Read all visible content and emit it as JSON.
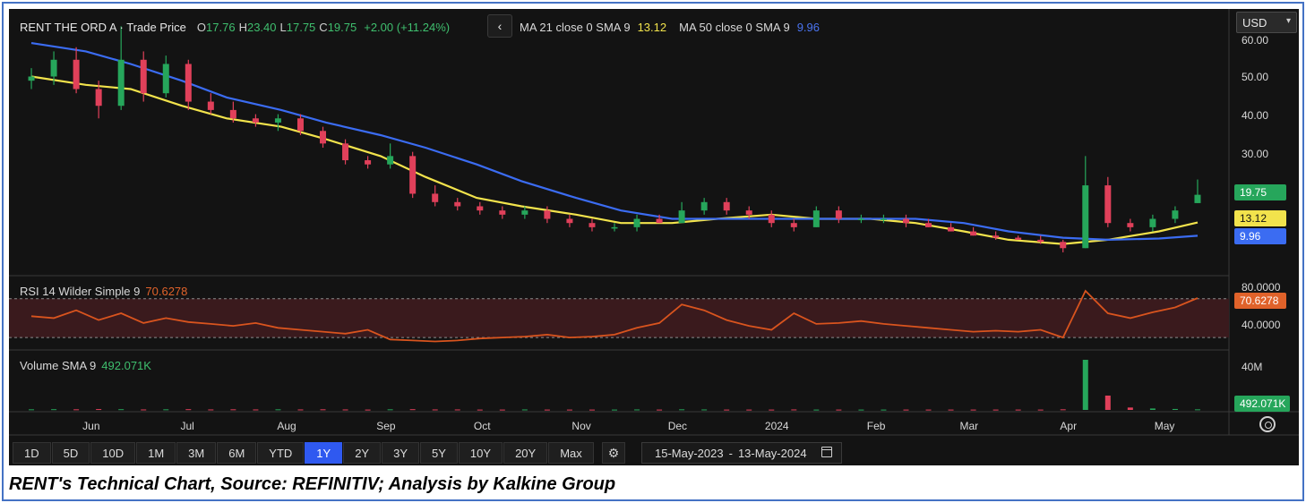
{
  "header": {
    "symbol": "RENT THE ORD A · Trade Price",
    "open_key": "O",
    "open": "17.76",
    "high_key": "H",
    "high": "23.40",
    "low_key": "L",
    "low": "17.75",
    "close_key": "C",
    "close": "19.75",
    "change": "+2.00 (+11.24%)",
    "collapse_glyph": "‹"
  },
  "ma_legend": {
    "ma21_label": "MA 21 close 0 SMA 9",
    "ma21_value": "13.12",
    "ma50_label": "MA 50 close 0 SMA 9",
    "ma50_value": "9.96"
  },
  "currency": {
    "selected": "USD",
    "caret": "▾"
  },
  "price_tags": {
    "close": "19.75",
    "ma21": "13.12",
    "ma50": "9.96"
  },
  "rsi": {
    "label": "RSI 14 Wilder Simple 9",
    "value": "70.6278",
    "tag": "70.6278"
  },
  "volume": {
    "label": "Volume SMA 9",
    "value": "492.071K",
    "tag": "492.071K"
  },
  "timeframes": [
    "1D",
    "5D",
    "10D",
    "1M",
    "3M",
    "6M",
    "YTD",
    "1Y",
    "2Y",
    "3Y",
    "5Y",
    "10Y",
    "20Y",
    "Max"
  ],
  "active_timeframe": "1Y",
  "date_range": {
    "from": "15-May-2023",
    "sep": "-",
    "to": "13-May-2024"
  },
  "caption": "RENT's Technical Chart, Source: REFINITIV; Analysis by Kalkine Group",
  "colors": {
    "up": "#26a65b",
    "down": "#e0405a",
    "ma21": "#f2e34c",
    "ma50": "#3b6cf2",
    "rsi": "#d9541e",
    "background": "#131313",
    "active": "#2f59f0",
    "frame": "#4472c4"
  },
  "chart_data": {
    "type": "candlestick",
    "title": "",
    "price_axis": {
      "ticks": [
        60.0,
        50.0,
        40.0,
        30.0
      ],
      "tick_labels": [
        "60.00",
        "50.00",
        "40.00",
        "30.00"
      ]
    },
    "rsi_axis": {
      "ticks": [
        80,
        40
      ],
      "tick_labels": [
        "80.0000",
        "40.0000"
      ],
      "overbought": 70,
      "oversold": 30
    },
    "volume_axis": {
      "tick_labels": [
        "40M"
      ]
    },
    "x_tick_labels": [
      "Jun",
      "Jul",
      "Aug",
      "Sep",
      "Oct",
      "Nov",
      "Dec",
      "2024",
      "Feb",
      "Mar",
      "Apr",
      "May"
    ],
    "series": [
      {
        "name": "MA 21 close 0 SMA 9",
        "color": "#f2e34c",
        "points": [
          [
            "2023-05-15",
            48
          ],
          [
            "2023-06-01",
            46
          ],
          [
            "2023-06-15",
            45
          ],
          [
            "2023-07-01",
            41
          ],
          [
            "2023-07-15",
            38
          ],
          [
            "2023-08-01",
            36
          ],
          [
            "2023-08-15",
            33
          ],
          [
            "2023-09-01",
            29
          ],
          [
            "2023-09-15",
            24
          ],
          [
            "2023-10-01",
            19
          ],
          [
            "2023-10-15",
            17
          ],
          [
            "2023-11-01",
            15
          ],
          [
            "2023-11-15",
            13
          ],
          [
            "2023-12-01",
            13
          ],
          [
            "2023-12-15",
            14
          ],
          [
            "2024-01-01",
            15
          ],
          [
            "2024-01-15",
            14
          ],
          [
            "2024-02-01",
            14
          ],
          [
            "2024-02-15",
            13
          ],
          [
            "2024-03-01",
            11
          ],
          [
            "2024-03-15",
            9
          ],
          [
            "2024-04-01",
            8
          ],
          [
            "2024-04-15",
            9
          ],
          [
            "2024-05-01",
            11
          ],
          [
            "2024-05-13",
            13.12
          ]
        ]
      },
      {
        "name": "MA 50 close 0 SMA 9",
        "color": "#3b6cf2",
        "points": [
          [
            "2023-05-15",
            56
          ],
          [
            "2023-06-01",
            54
          ],
          [
            "2023-06-15",
            51
          ],
          [
            "2023-07-01",
            47
          ],
          [
            "2023-07-15",
            43
          ],
          [
            "2023-08-01",
            40
          ],
          [
            "2023-08-15",
            37
          ],
          [
            "2023-09-01",
            34
          ],
          [
            "2023-09-15",
            31
          ],
          [
            "2023-10-01",
            27
          ],
          [
            "2023-10-15",
            23
          ],
          [
            "2023-11-01",
            19
          ],
          [
            "2023-11-15",
            16
          ],
          [
            "2023-12-01",
            14
          ],
          [
            "2023-12-15",
            14
          ],
          [
            "2024-01-01",
            14
          ],
          [
            "2024-01-15",
            14
          ],
          [
            "2024-02-01",
            14
          ],
          [
            "2024-02-15",
            14
          ],
          [
            "2024-03-01",
            13
          ],
          [
            "2024-03-15",
            11
          ],
          [
            "2024-04-01",
            9.5
          ],
          [
            "2024-04-15",
            9
          ],
          [
            "2024-05-01",
            9.3
          ],
          [
            "2024-05-13",
            9.96
          ]
        ]
      }
    ],
    "candles": [
      {
        "d": "2023-05-15",
        "o": 47,
        "h": 50,
        "l": 45,
        "c": 48
      },
      {
        "d": "2023-05-22",
        "o": 48,
        "h": 54,
        "l": 46,
        "c": 52
      },
      {
        "d": "2023-05-29",
        "o": 52,
        "h": 55,
        "l": 44,
        "c": 45
      },
      {
        "d": "2023-06-05",
        "o": 45,
        "h": 47,
        "l": 38,
        "c": 41
      },
      {
        "d": "2023-06-12",
        "o": 41,
        "h": 60,
        "l": 40,
        "c": 52
      },
      {
        "d": "2023-06-19",
        "o": 52,
        "h": 54,
        "l": 42,
        "c": 44
      },
      {
        "d": "2023-06-26",
        "o": 44,
        "h": 53,
        "l": 43,
        "c": 51
      },
      {
        "d": "2023-07-03",
        "o": 51,
        "h": 52,
        "l": 40,
        "c": 42
      },
      {
        "d": "2023-07-10",
        "o": 42,
        "h": 44,
        "l": 39,
        "c": 40
      },
      {
        "d": "2023-07-17",
        "o": 40,
        "h": 42,
        "l": 37,
        "c": 38
      },
      {
        "d": "2023-07-24",
        "o": 38,
        "h": 39,
        "l": 36,
        "c": 37
      },
      {
        "d": "2023-07-31",
        "o": 37,
        "h": 39,
        "l": 35,
        "c": 38
      },
      {
        "d": "2023-08-07",
        "o": 38,
        "h": 39,
        "l": 34,
        "c": 35
      },
      {
        "d": "2023-08-14",
        "o": 35,
        "h": 36,
        "l": 31,
        "c": 32
      },
      {
        "d": "2023-08-21",
        "o": 32,
        "h": 33,
        "l": 27,
        "c": 28
      },
      {
        "d": "2023-08-28",
        "o": 28,
        "h": 29,
        "l": 26,
        "c": 27
      },
      {
        "d": "2023-09-04",
        "o": 27,
        "h": 32,
        "l": 26,
        "c": 29
      },
      {
        "d": "2023-09-11",
        "o": 29,
        "h": 30,
        "l": 19,
        "c": 20
      },
      {
        "d": "2023-09-18",
        "o": 20,
        "h": 22,
        "l": 17,
        "c": 18
      },
      {
        "d": "2023-09-25",
        "o": 18,
        "h": 19,
        "l": 16,
        "c": 17
      },
      {
        "d": "2023-10-02",
        "o": 17,
        "h": 18,
        "l": 15,
        "c": 16
      },
      {
        "d": "2023-10-09",
        "o": 16,
        "h": 17,
        "l": 14,
        "c": 15
      },
      {
        "d": "2023-10-16",
        "o": 15,
        "h": 17,
        "l": 14,
        "c": 16
      },
      {
        "d": "2023-10-23",
        "o": 16,
        "h": 17,
        "l": 13,
        "c": 14
      },
      {
        "d": "2023-10-30",
        "o": 14,
        "h": 15,
        "l": 12,
        "c": 13
      },
      {
        "d": "2023-11-06",
        "o": 13,
        "h": 14,
        "l": 11,
        "c": 12
      },
      {
        "d": "2023-11-13",
        "o": 12,
        "h": 13,
        "l": 11,
        "c": 12
      },
      {
        "d": "2023-11-20",
        "o": 12,
        "h": 15,
        "l": 11,
        "c": 14
      },
      {
        "d": "2023-11-27",
        "o": 14,
        "h": 15,
        "l": 13,
        "c": 13
      },
      {
        "d": "2023-12-04",
        "o": 13,
        "h": 18,
        "l": 13,
        "c": 16
      },
      {
        "d": "2023-12-11",
        "o": 16,
        "h": 19,
        "l": 15,
        "c": 18
      },
      {
        "d": "2023-12-18",
        "o": 18,
        "h": 19,
        "l": 15,
        "c": 16
      },
      {
        "d": "2023-12-25",
        "o": 16,
        "h": 17,
        "l": 14,
        "c": 15
      },
      {
        "d": "2024-01-01",
        "o": 15,
        "h": 16,
        "l": 12,
        "c": 13
      },
      {
        "d": "2024-01-08",
        "o": 13,
        "h": 14,
        "l": 11,
        "c": 12
      },
      {
        "d": "2024-01-15",
        "o": 12,
        "h": 17,
        "l": 12,
        "c": 16
      },
      {
        "d": "2024-01-22",
        "o": 16,
        "h": 17,
        "l": 13,
        "c": 14
      },
      {
        "d": "2024-01-29",
        "o": 14,
        "h": 15,
        "l": 13,
        "c": 14
      },
      {
        "d": "2024-02-05",
        "o": 14,
        "h": 15,
        "l": 13,
        "c": 14
      },
      {
        "d": "2024-02-12",
        "o": 14,
        "h": 15,
        "l": 12,
        "c": 13
      },
      {
        "d": "2024-02-19",
        "o": 13,
        "h": 14,
        "l": 12,
        "c": 12
      },
      {
        "d": "2024-02-26",
        "o": 12,
        "h": 13,
        "l": 11,
        "c": 11
      },
      {
        "d": "2024-03-04",
        "o": 11,
        "h": 12,
        "l": 10,
        "c": 10
      },
      {
        "d": "2024-03-11",
        "o": 10,
        "h": 11,
        "l": 9,
        "c": 9.5
      },
      {
        "d": "2024-03-18",
        "o": 9.5,
        "h": 10,
        "l": 9,
        "c": 9
      },
      {
        "d": "2024-03-25",
        "o": 9,
        "h": 10,
        "l": 8,
        "c": 8.5
      },
      {
        "d": "2024-04-01",
        "o": 8.5,
        "h": 9,
        "l": 6,
        "c": 7
      },
      {
        "d": "2024-04-08",
        "o": 7,
        "h": 29,
        "l": 7,
        "c": 22
      },
      {
        "d": "2024-04-15",
        "o": 22,
        "h": 24,
        "l": 12,
        "c": 13
      },
      {
        "d": "2024-04-22",
        "o": 13,
        "h": 14,
        "l": 11,
        "c": 12
      },
      {
        "d": "2024-04-29",
        "o": 12,
        "h": 15,
        "l": 11,
        "c": 14
      },
      {
        "d": "2024-05-06",
        "o": 14,
        "h": 17,
        "l": 13,
        "c": 16
      },
      {
        "d": "2024-05-13",
        "o": 17.76,
        "h": 23.4,
        "l": 17.75,
        "c": 19.75
      }
    ],
    "rsi_values": [
      52,
      50,
      58,
      48,
      55,
      45,
      50,
      46,
      44,
      42,
      45,
      40,
      38,
      36,
      34,
      38,
      28,
      27,
      26,
      27,
      29,
      30,
      31,
      33,
      30,
      31,
      33,
      40,
      45,
      64,
      58,
      48,
      42,
      38,
      55,
      44,
      45,
      47,
      44,
      42,
      40,
      38,
      36,
      37,
      36,
      38,
      30,
      78,
      55,
      50,
      56,
      61,
      70.6278
    ],
    "volume_values": [
      0.5,
      0.6,
      0.5,
      0.7,
      0.6,
      0.4,
      0.5,
      0.6,
      0.4,
      0.5,
      0.4,
      0.5,
      0.4,
      0.5,
      0.4,
      0.3,
      0.5,
      0.6,
      0.4,
      0.4,
      0.3,
      0.3,
      0.4,
      0.3,
      0.3,
      0.3,
      0.3,
      0.4,
      0.3,
      0.5,
      0.4,
      0.3,
      0.3,
      0.3,
      0.4,
      0.3,
      0.3,
      0.3,
      0.3,
      0.3,
      0.3,
      0.3,
      0.3,
      0.3,
      0.3,
      0.3,
      0.5,
      42,
      12,
      2,
      1.2,
      0.8,
      0.49
    ]
  }
}
